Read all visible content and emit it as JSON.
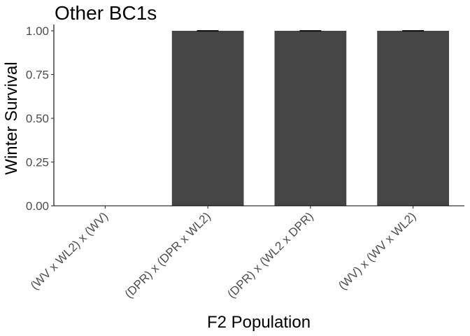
{
  "chart_data": {
    "type": "bar",
    "title": "Other BC1s",
    "xlabel": "F2 Population",
    "ylabel": "Winter Survival",
    "categories": [
      "(WV x WL2) x (WV)",
      "(DPR) x (DPR x WL2)",
      "(DPR) x (WL2 x DPR)",
      "(WV) x (WV x WL2)"
    ],
    "values": [
      0,
      1,
      1,
      1
    ],
    "error": [
      0,
      0,
      0,
      0
    ],
    "ylim": [
      0,
      1
    ],
    "yticks": [
      0,
      0.25,
      0.5,
      0.75,
      1
    ],
    "ytick_labels": [
      "0.00",
      "0.25",
      "0.50",
      "0.75",
      "1.00"
    ],
    "bar_color": "#454545",
    "grid": false
  }
}
